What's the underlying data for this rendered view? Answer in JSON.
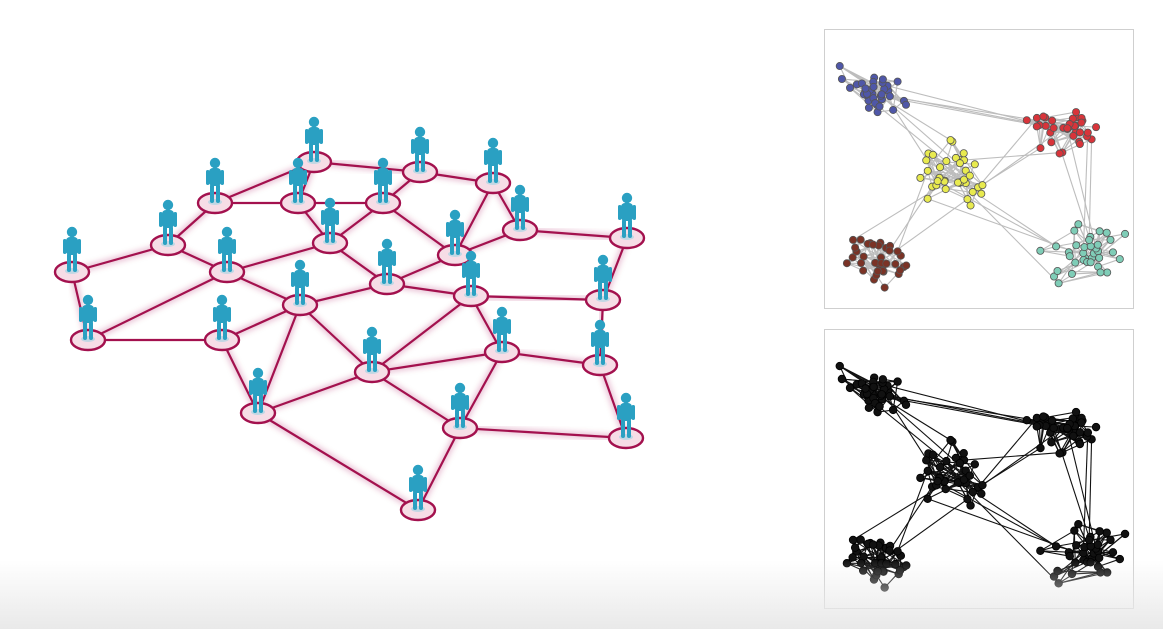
{
  "illustration": {
    "link_color": "#a3114e",
    "figure_color": "#2aa0c2",
    "platform_fill": "#f6dde6"
  },
  "clustered_network": {
    "cluster_colors": [
      "#4f57a8",
      "#e8ea4f",
      "#d8343a",
      "#7b3326",
      "#7fcdb7"
    ],
    "edge_color": "#bdbdbd"
  },
  "unclustered_network": {
    "node_color": "#111111",
    "edge_color": "#111111"
  }
}
